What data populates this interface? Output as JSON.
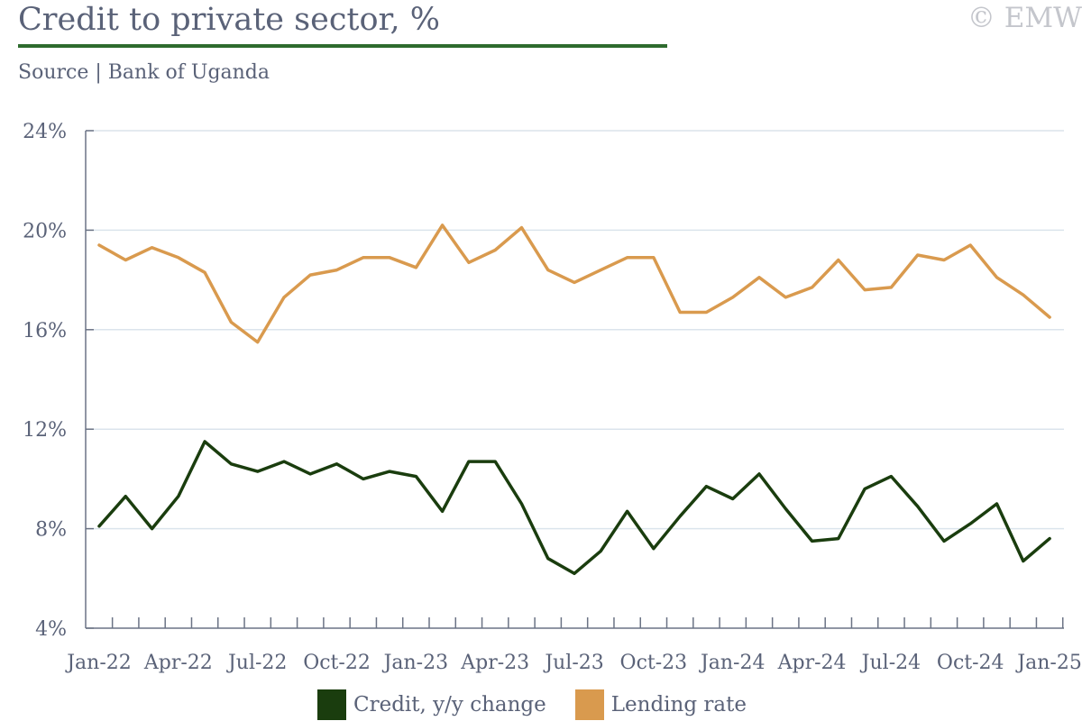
{
  "header": {
    "title": "Credit to private sector, %",
    "source": "Source | Bank of Uganda",
    "watermark": "© EMW"
  },
  "colors": {
    "title_rule": "#2e6b2e",
    "credit": "#1a3d0e",
    "lending": "#d99a4e",
    "grid": "#dbe4ec",
    "axis": "#6b7385"
  },
  "chart_data": {
    "type": "line",
    "title": "Credit to private sector, %",
    "x": [
      "Jan-22",
      "Feb-22",
      "Mar-22",
      "Apr-22",
      "May-22",
      "Jun-22",
      "Jul-22",
      "Aug-22",
      "Sep-22",
      "Oct-22",
      "Nov-22",
      "Dec-22",
      "Jan-23",
      "Feb-23",
      "Mar-23",
      "Apr-23",
      "May-23",
      "Jun-23",
      "Jul-23",
      "Aug-23",
      "Sep-23",
      "Oct-23",
      "Nov-23",
      "Dec-23",
      "Jan-24",
      "Feb-24",
      "Mar-24",
      "Apr-24",
      "May-24",
      "Jun-24",
      "Jul-24",
      "Aug-24",
      "Sep-24",
      "Oct-24",
      "Nov-24",
      "Dec-24",
      "Jan-25"
    ],
    "x_tick_labels": [
      "Jan-22",
      "Apr-22",
      "Jul-22",
      "Oct-22",
      "Jan-23",
      "Apr-23",
      "Jul-23",
      "Oct-23",
      "Jan-24",
      "Apr-24",
      "Jul-24",
      "Oct-24",
      "Jan-25"
    ],
    "y_tick_labels": [
      "24%",
      "20%",
      "16%",
      "12%",
      "8%",
      "4%"
    ],
    "ylim": [
      4,
      24
    ],
    "y_ticks": [
      4,
      8,
      12,
      16,
      20,
      24
    ],
    "grid": true,
    "legend_position": "bottom",
    "series": [
      {
        "name": "Credit, y/y change",
        "values": [
          8.1,
          9.3,
          8.0,
          9.3,
          11.5,
          10.6,
          10.3,
          10.7,
          10.2,
          10.6,
          10.0,
          10.3,
          10.1,
          8.7,
          10.7,
          10.7,
          9.0,
          6.8,
          6.2,
          7.1,
          8.7,
          7.2,
          8.5,
          9.7,
          9.2,
          10.2,
          8.8,
          7.5,
          7.6,
          9.6,
          10.1,
          8.9,
          7.5,
          8.2,
          9.0,
          6.7,
          7.6
        ]
      },
      {
        "name": "Lending rate",
        "values": [
          19.4,
          18.8,
          19.3,
          18.9,
          18.3,
          16.3,
          15.5,
          17.3,
          18.2,
          18.4,
          18.9,
          18.9,
          18.5,
          20.2,
          18.7,
          19.2,
          20.1,
          18.4,
          17.9,
          18.4,
          18.9,
          18.9,
          16.7,
          16.7,
          17.3,
          18.1,
          17.3,
          17.7,
          18.8,
          17.6,
          17.7,
          19.0,
          18.8,
          19.4,
          18.1,
          17.4,
          16.5
        ]
      }
    ]
  }
}
